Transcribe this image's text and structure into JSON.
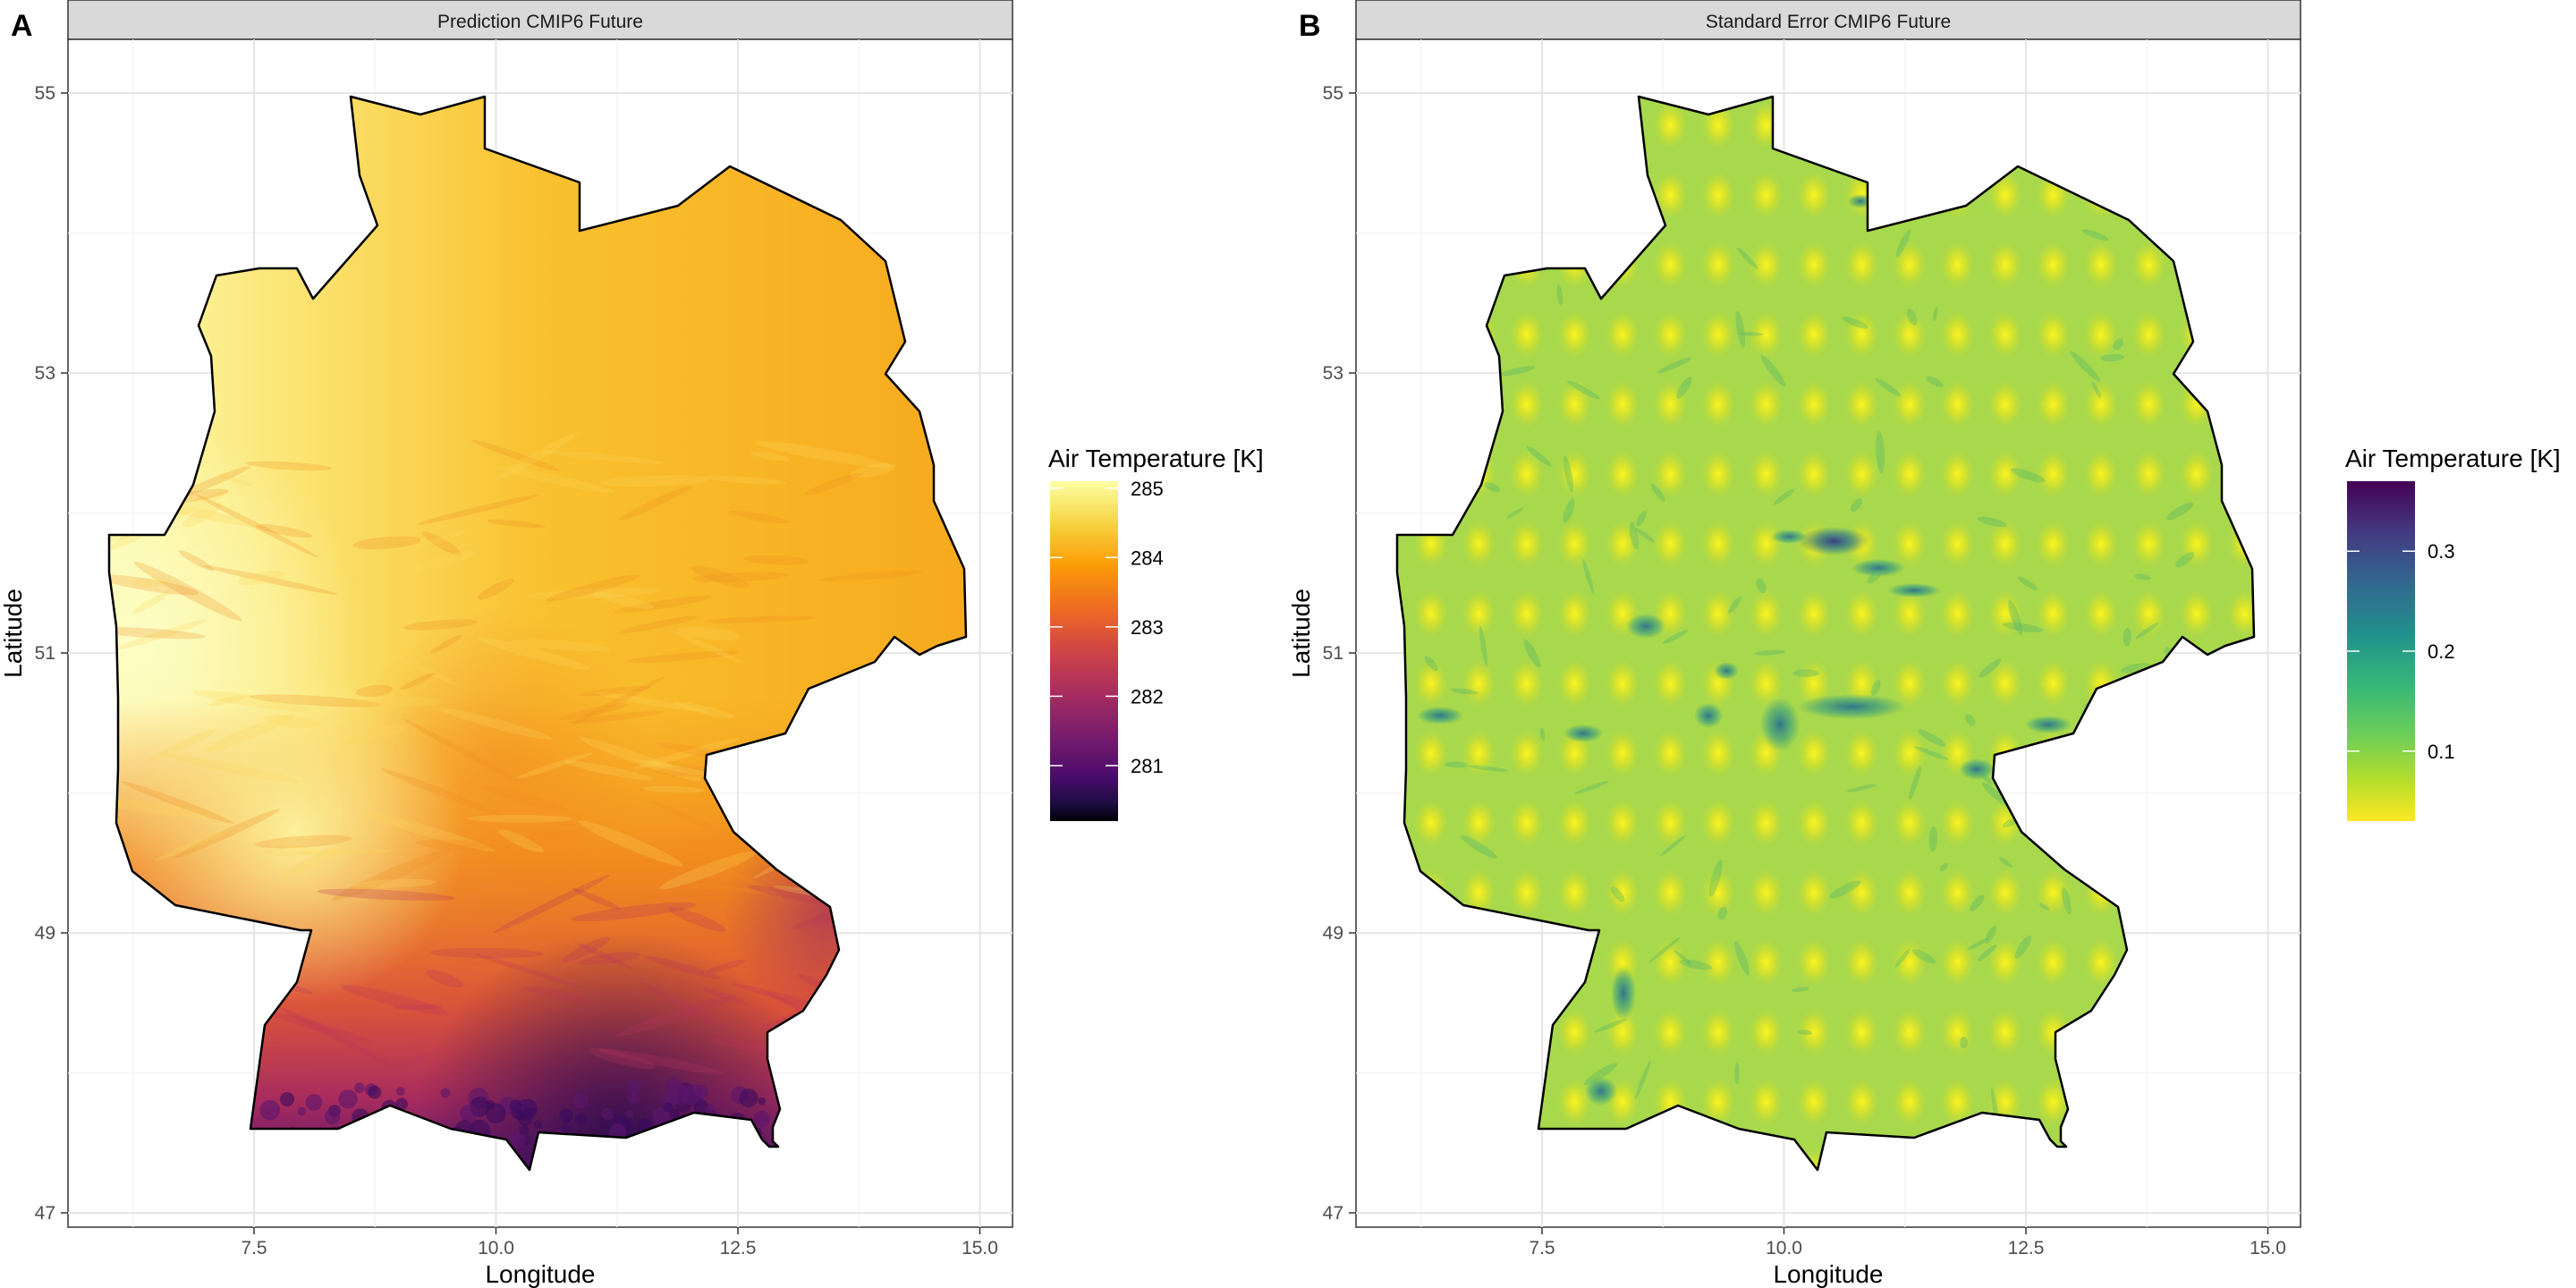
{
  "panels": [
    {
      "tag": "A",
      "strip_title": "Prediction CMIP6 Future",
      "x_label": "Longitude",
      "y_label": "Latitude",
      "x_ticks": [
        "7.5",
        "10.0",
        "12.5",
        "15.0"
      ],
      "y_ticks": [
        "55",
        "53",
        "51",
        "49",
        "47"
      ],
      "legend": {
        "title": "Air Temperature [K]",
        "labels": [
          "285",
          "284",
          "283",
          "282",
          "281"
        ],
        "colormap": "inferno",
        "colors": [
          "#fcffa4",
          "#f9c932",
          "#f98e09",
          "#e25734",
          "#bc3754",
          "#8a226a",
          "#57106e",
          "#210c4a",
          "#000004"
        ]
      }
    },
    {
      "tag": "B",
      "strip_title": "Standard Error CMIP6 Future",
      "x_label": "Longitude",
      "y_label": "Latitude",
      "x_ticks": [
        "7.5",
        "10.0",
        "12.5",
        "15.0"
      ],
      "y_ticks": [
        "55",
        "53",
        "51",
        "49",
        "47"
      ],
      "legend": {
        "title": "Air Temperature [K]",
        "labels": [
          "0.3",
          "0.2",
          "0.1"
        ],
        "colormap": "viridis",
        "colors": [
          "#440154",
          "#3b528b",
          "#21918c",
          "#2fb47c",
          "#5ec962",
          "#b5de2b",
          "#fde725"
        ]
      }
    }
  ],
  "chart_data": [
    {
      "type": "heatmap",
      "title": "Prediction CMIP6 Future",
      "xlabel": "Longitude",
      "ylabel": "Latitude",
      "xlim": [
        5.6,
        15.3
      ],
      "ylim": [
        46.8,
        55.5
      ],
      "x_ticks": [
        7.5,
        10.0,
        12.5,
        15.0
      ],
      "y_ticks": [
        47,
        49,
        51,
        53,
        55
      ],
      "grid": true,
      "legend_position": "right",
      "colorbar": {
        "title": "Air Temperature [K]",
        "min": 280.2,
        "max": 285.1,
        "ticks": [
          285,
          284,
          283,
          282,
          281
        ],
        "colormap": "inferno"
      },
      "region": "Germany",
      "pattern": "Warmest (~285 K) in the west/southwest (Rhine valley); ~284 K across the north and center; cooler toward the southeast; coldest (~280.5–281.5 K) along the Alps in the far south"
    },
    {
      "type": "heatmap",
      "title": "Standard Error CMIP6 Future",
      "xlabel": "Longitude",
      "ylabel": "Latitude",
      "xlim": [
        5.6,
        15.3
      ],
      "ylim": [
        46.8,
        55.5
      ],
      "x_ticks": [
        7.5,
        10.0,
        12.5,
        15.0
      ],
      "y_ticks": [
        47,
        49,
        51,
        53,
        55
      ],
      "grid": true,
      "legend_position": "right",
      "colorbar": {
        "title": "Air Temperature [K]",
        "min": 0.03,
        "max": 0.37,
        "ticks": [
          0.3,
          0.2,
          0.1
        ],
        "colormap": "viridis"
      },
      "region": "Germany",
      "pattern": "Mostly ~0.12 with a regular grid of low-error points (~0.04, yellow); higher error (0.2–0.35) in mountainous patches such as the Harz, Thuringian Forest and Black Forest"
    }
  ]
}
